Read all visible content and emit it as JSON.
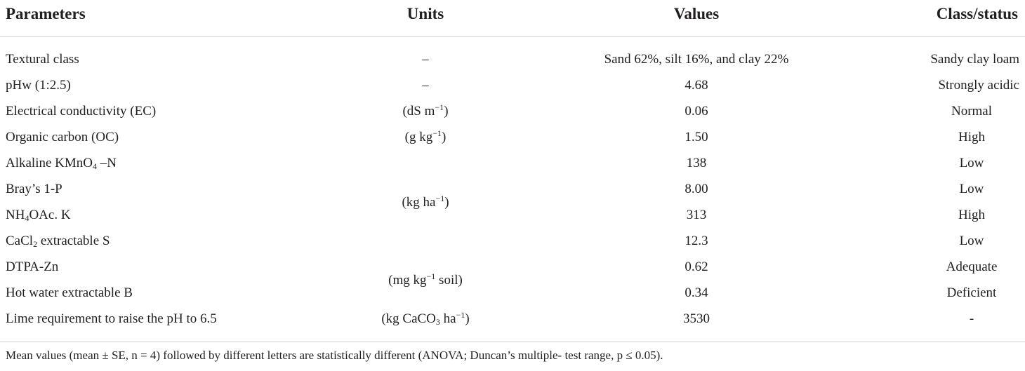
{
  "table": {
    "headers": {
      "parameters": "Parameters",
      "units": "Units",
      "values": "Values",
      "class_status": "Class/status"
    },
    "rows": [
      {
        "parameter": "Textural class",
        "value": "Sand 62%, silt 16%, and clay 22%",
        "status": "Sandy clay loam"
      },
      {
        "parameter": "pHw (1:2.5)",
        "value": "4.68",
        "status": "Strongly acidic"
      },
      {
        "parameter": "Electrical conductivity (EC)",
        "value": "0.06",
        "status": "Normal"
      },
      {
        "parameter": "Organic carbon (OC)",
        "value": "1.50",
        "status": "High"
      },
      {
        "parameter_pre": "Alkaline KMnO",
        "parameter_sub": "4",
        "parameter_post": " –N",
        "value": "138",
        "status": "Low"
      },
      {
        "parameter": "Bray’s 1-P",
        "value": "8.00",
        "status": "Low"
      },
      {
        "parameter_pre": "NH",
        "parameter_sub": "4",
        "parameter_post": "OAc. K",
        "value": "313",
        "status": "High"
      },
      {
        "parameter_pre": "CaCl",
        "parameter_sub": "2",
        "parameter_post": " extractable S",
        "value": "12.3",
        "status": "Low"
      },
      {
        "parameter": "DTPA-Zn",
        "value": "0.62",
        "status": "Adequate"
      },
      {
        "parameter": "Hot water extractable B",
        "value": "0.34",
        "status": "Deficient"
      },
      {
        "parameter": "Lime requirement to raise the pH to 6.5",
        "value": "3530",
        "status": "-"
      }
    ],
    "units": {
      "textural": "–",
      "ph": "–",
      "ec": {
        "pre": "(dS m",
        "sup": "−1",
        "post": ")"
      },
      "oc": {
        "pre": "(g kg",
        "sup": "−1",
        "post": ")"
      },
      "npks": {
        "pre": "(kg ha",
        "sup": "−1",
        "post": ")"
      },
      "micro": {
        "pre": "(mg kg",
        "sup": "−1",
        "post": " soil)"
      },
      "lime": {
        "pre": "(kg CaCO",
        "sub": "3",
        "mid": " ha",
        "sup": "−1",
        "post": ")"
      }
    }
  },
  "footnote": "Mean values (mean ± SE, n = 4) followed by different letters are statistically different (ANOVA; Duncan’s multiple- test range, p ≤ 0.05)."
}
